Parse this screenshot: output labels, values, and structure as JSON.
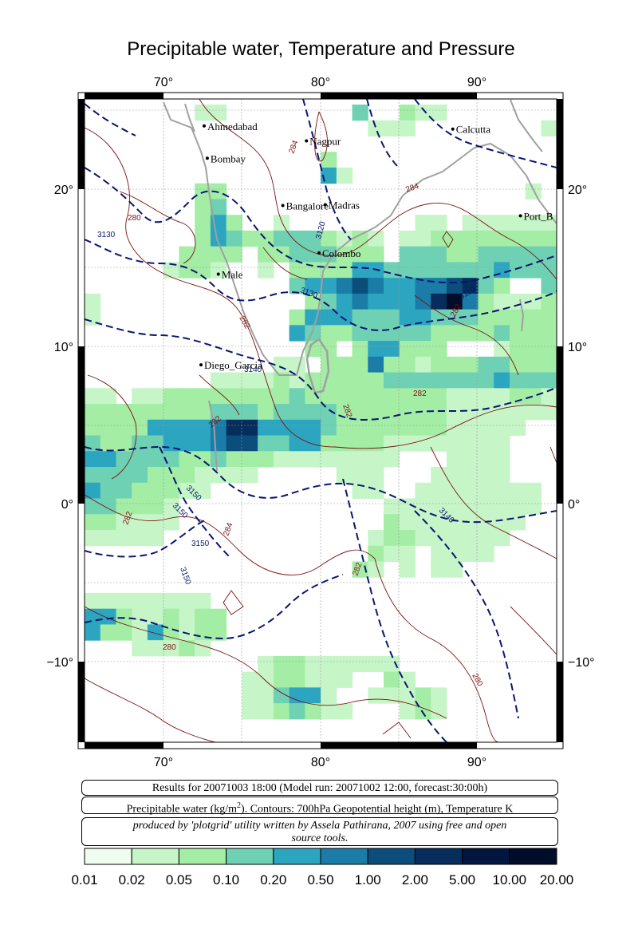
{
  "title": "Precipitable water, Temperature and Pressure",
  "map": {
    "lon_ticks": [
      "70°",
      "80°",
      "90°"
    ],
    "lat_ticks_left": [
      "20°",
      "10°",
      "0°",
      "−10°"
    ],
    "lat_ticks_right": [
      "20°",
      "10°",
      "0°",
      "−10°"
    ],
    "cities": [
      {
        "name": "Ahmedabad",
        "lon": 72.6,
        "lat": 23.0
      },
      {
        "name": "Calcutta",
        "lon": 88.4,
        "lat": 22.6
      },
      {
        "name": "Nagpur",
        "lon": 79.1,
        "lat": 21.1
      },
      {
        "name": "Bombay",
        "lon": 72.8,
        "lat": 18.9
      },
      {
        "name": "Bangalore",
        "lon": 77.6,
        "lat": 12.9
      },
      {
        "name": "Madras",
        "lon": 80.3,
        "lat": 13.0
      },
      {
        "name": "Port_B",
        "lon": 92.7,
        "lat": 11.6
      },
      {
        "name": "Colombo",
        "lon": 79.9,
        "lat": 6.9
      },
      {
        "name": "Male",
        "lon": 73.5,
        "lat": 4.2
      },
      {
        "name": "Diego_Garcia",
        "lon": 72.4,
        "lat": -7.3
      }
    ],
    "contour_labels_temperature": [
      "280",
      "284",
      "284",
      "282",
      "282",
      "282",
      "282",
      "282",
      "282",
      "282",
      "280",
      "280",
      "284"
    ],
    "contour_labels_height": [
      "3130",
      "3120",
      "3130",
      "3110",
      "3140",
      "3150",
      "3150",
      "3150",
      "3150",
      "3140"
    ]
  },
  "info": {
    "run": "Results for 20071003 18:00 (Model run: 20071002 12:00, forecast:30:00h)",
    "legend_pre": "Precipitable water (kg/m",
    "legend_sup": "2",
    "legend_post": ").  Contours: 700hPa Geopotential height (m), Temperature K",
    "credit_line1": "produced by 'plotgrid' utility written by Assela Pathirana, 2007 using free and open",
    "credit_line2": "source tools."
  },
  "colorbar": {
    "labels": [
      "0.01",
      "0.02",
      "0.05",
      "0.10",
      "0.20",
      "0.50",
      "1.00",
      "2.00",
      "5.00",
      "10.00",
      "20.00"
    ],
    "colors": [
      "#effcf0",
      "#c6f5c8",
      "#a3eda5",
      "#6ed1b3",
      "#2ca5c0",
      "#1b7ca7",
      "#0b4e7c",
      "#062d5c",
      "#03163f",
      "#020d2a",
      "#01061a"
    ]
  }
}
